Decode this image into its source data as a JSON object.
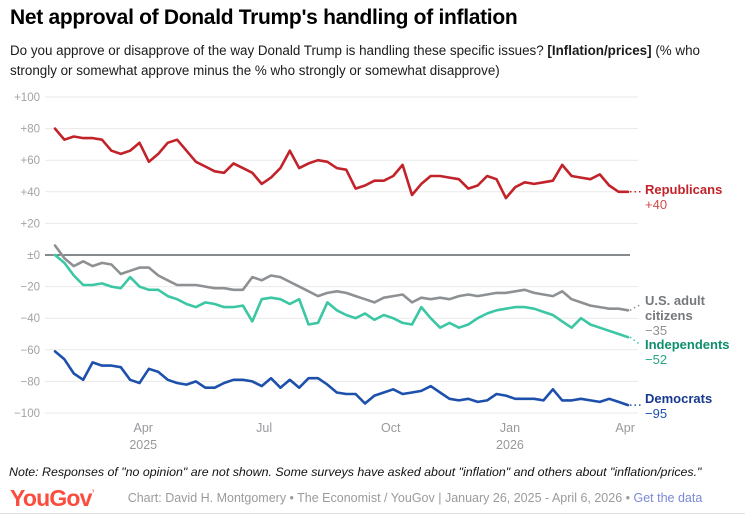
{
  "header": {
    "title": "Net approval of Donald Trump's handling of inflation",
    "subtitle_prefix": "Do you approve or disapprove of the way Donald Trump is handling these specific issues? ",
    "subtitle_bold": "[Inflation/prices]",
    "subtitle_suffix": " (% who strongly or somewhat approve minus the % who strongly or somewhat disapprove)"
  },
  "chart_data": {
    "type": "line",
    "title": "Net approval of Donald Trump's handling of inflation",
    "x_range": [
      "January 26, 2025",
      "April 6, 2026"
    ],
    "ylim": [
      -100,
      100
    ],
    "grid": true,
    "zero_line": true,
    "legend_position": "right-edge-labels",
    "y_ticks": [
      {
        "value": 100,
        "label": "+100"
      },
      {
        "value": 80,
        "label": "+80"
      },
      {
        "value": 60,
        "label": "+60"
      },
      {
        "value": 40,
        "label": "+40"
      },
      {
        "value": 20,
        "label": "+20"
      },
      {
        "value": 0,
        "label": "±0"
      },
      {
        "value": -20,
        "label": "−20"
      },
      {
        "value": -40,
        "label": "−40"
      },
      {
        "value": -60,
        "label": "−60"
      },
      {
        "value": -80,
        "label": "−80"
      },
      {
        "value": -100,
        "label": "−100"
      }
    ],
    "x_ticks": [
      {
        "label": "Apr",
        "sublabel": "2025",
        "pos": 0.154
      },
      {
        "label": "Jul",
        "pos": 0.365
      },
      {
        "label": "Oct",
        "pos": 0.586
      },
      {
        "label": "Jan",
        "sublabel": "2026",
        "pos": 0.794
      },
      {
        "label": "Apr",
        "pos": 0.995
      }
    ],
    "series": [
      {
        "name": "Republicans",
        "end_label": "+40",
        "end_value": 40,
        "color": "#c2232a",
        "leader_dy": 0,
        "values": [
          80,
          73,
          75,
          74,
          74,
          73,
          66,
          64,
          66,
          71,
          59,
          64,
          71,
          73,
          66,
          59,
          56,
          53,
          52,
          58,
          55,
          52,
          45,
          49,
          55,
          66,
          55,
          58,
          60,
          59,
          55,
          54,
          42,
          44,
          47,
          47,
          50,
          57,
          38,
          45,
          50,
          50,
          49,
          48,
          42,
          44,
          50,
          48,
          36,
          43,
          46,
          45,
          46,
          47,
          57,
          50,
          49,
          48,
          51,
          44,
          40,
          40
        ]
      },
      {
        "name": "U.S. adult citizens",
        "end_label": "−35",
        "end_value": -35,
        "color": "#8e9194",
        "leader_dy": -6,
        "values": [
          6,
          -2,
          -7,
          -4,
          -7,
          -5,
          -6,
          -12,
          -10,
          -8,
          -8,
          -13,
          -16,
          -19,
          -19,
          -19,
          -20,
          -21,
          -21,
          -22,
          -22,
          -14,
          -16,
          -13,
          -14,
          -17,
          -20,
          -23,
          -26,
          -24,
          -23,
          -24,
          -26,
          -28,
          -30,
          -27,
          -26,
          -25,
          -30,
          -27,
          -28,
          -27,
          -28,
          -26,
          -25,
          -26,
          -25,
          -24,
          -24,
          -23,
          -22,
          -24,
          -25,
          -26,
          -23,
          -28,
          -30,
          -32,
          -33,
          -34,
          -34,
          -35
        ]
      },
      {
        "name": "Independents",
        "end_label": "−52",
        "end_value": -52,
        "color": "#3bc7a4",
        "leader_dy": 8,
        "values": [
          0,
          -5,
          -13,
          -19,
          -19,
          -18,
          -20,
          -21,
          -14,
          -20,
          -22,
          -22,
          -26,
          -28,
          -31,
          -33,
          -30,
          -31,
          -33,
          -33,
          -32,
          -42,
          -28,
          -27,
          -28,
          -31,
          -28,
          -44,
          -43,
          -30,
          -35,
          -38,
          -40,
          -37,
          -41,
          -38,
          -40,
          -43,
          -44,
          -33,
          -40,
          -46,
          -43,
          -46,
          -44,
          -40,
          -37,
          -35,
          -34,
          -33,
          -33,
          -34,
          -36,
          -38,
          -42,
          -46,
          -40,
          -44,
          -46,
          -48,
          -50,
          -52
        ]
      },
      {
        "name": "Democrats",
        "end_label": "−95",
        "end_value": -95,
        "color": "#1d50ac",
        "leader_dy": 0,
        "values": [
          -61,
          -66,
          -75,
          -79,
          -68,
          -70,
          -70,
          -71,
          -79,
          -81,
          -72,
          -74,
          -79,
          -81,
          -82,
          -80,
          -84,
          -84,
          -81,
          -79,
          -79,
          -80,
          -83,
          -78,
          -84,
          -79,
          -84,
          -78,
          -78,
          -82,
          -87,
          -88,
          -88,
          -94,
          -89,
          -87,
          -85,
          -88,
          -87,
          -86,
          -83,
          -87,
          -91,
          -92,
          -91,
          -93,
          -92,
          -88,
          -89,
          -91,
          -91,
          -91,
          -92,
          -85,
          -92,
          -92,
          -91,
          -92,
          -93,
          -91,
          -93,
          -95
        ]
      }
    ],
    "style": {
      "grid_color": "#e9e9e9",
      "zero_line_color": "#3f4347",
      "axis_label_color": "#a0a3a6",
      "x_label_color": "#97999c"
    }
  },
  "note": "Note: Responses of \"no opinion\" are not shown. Some surveys have asked about \"inflation\" and others about \"inflation/prices.\"",
  "footer": {
    "logo": "YouGov",
    "caption": "Chart: David H. Montgomery • The Economist / YouGov | January 26, 2025 - April 6, 2026",
    "separator": " • ",
    "link": "Get the data"
  }
}
